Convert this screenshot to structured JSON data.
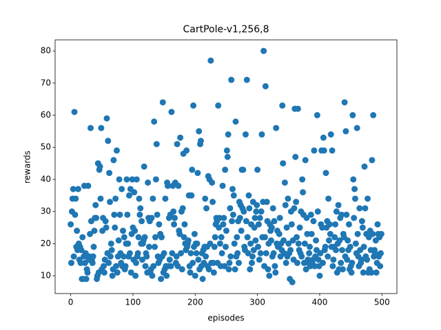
{
  "chart_data": {
    "type": "scatter",
    "title": "CartPole-v1,256,8",
    "x_label": "episodes",
    "y_label": "rewards",
    "xlim": [
      -25,
      524
    ],
    "ylim": [
      4.45,
      83.45
    ],
    "xticks": [
      0,
      100,
      200,
      300,
      400,
      500
    ],
    "yticks": [
      10,
      20,
      30,
      40,
      50,
      60,
      70,
      80
    ],
    "series": [
      {
        "color": "#1f77b4",
        "x": [
          0,
          1,
          2,
          3,
          4,
          5,
          6,
          7,
          8,
          9,
          10,
          11,
          12,
          13,
          14,
          15,
          16,
          17,
          18,
          19,
          20,
          21,
          22,
          23,
          24,
          25,
          26,
          27,
          28,
          29,
          30,
          31,
          32,
          33,
          34,
          35,
          36,
          37,
          38,
          39,
          40,
          41,
          42,
          43,
          44,
          45,
          46,
          47,
          48,
          49,
          50,
          51,
          52,
          53,
          54,
          55,
          56,
          57,
          58,
          59,
          60,
          61,
          62,
          63,
          64,
          65,
          66,
          67,
          68,
          69,
          70,
          71,
          72,
          73,
          74,
          75,
          76,
          77,
          78,
          79,
          80,
          81,
          82,
          83,
          84,
          85,
          86,
          87,
          88,
          89,
          90,
          91,
          92,
          93,
          94,
          95,
          96,
          97,
          98,
          99,
          100,
          101,
          102,
          103,
          104,
          105,
          106,
          107,
          108,
          109,
          110,
          111,
          112,
          113,
          114,
          115,
          116,
          117,
          118,
          119,
          120,
          121,
          122,
          123,
          124,
          125,
          126,
          127,
          128,
          129,
          130,
          131,
          132,
          133,
          134,
          135,
          136,
          137,
          138,
          139,
          140,
          141,
          142,
          143,
          144,
          145,
          146,
          147,
          148,
          149,
          150,
          151,
          152,
          153,
          154,
          155,
          156,
          157,
          158,
          159,
          160,
          161,
          162,
          163,
          164,
          165,
          166,
          167,
          168,
          169,
          170,
          171,
          172,
          173,
          174,
          175,
          176,
          177,
          178,
          179,
          180,
          181,
          182,
          183,
          184,
          185,
          186,
          187,
          188,
          189,
          190,
          191,
          192,
          193,
          194,
          195,
          196,
          197,
          198,
          199,
          200,
          201,
          202,
          203,
          204,
          205,
          206,
          207,
          208,
          209,
          210,
          211,
          212,
          213,
          214,
          215,
          216,
          217,
          218,
          219,
          220,
          221,
          222,
          223,
          224,
          225,
          226,
          227,
          228,
          229,
          230,
          231,
          232,
          233,
          234,
          235,
          236,
          237,
          238,
          239,
          240,
          241,
          242,
          243,
          244,
          245,
          246,
          247,
          248,
          249,
          250,
          251,
          252,
          253,
          254,
          255,
          256,
          257,
          258,
          259,
          260,
          261,
          262,
          263,
          264,
          265,
          266,
          267,
          268,
          269,
          270,
          271,
          272,
          273,
          274,
          275,
          276,
          277,
          278,
          279,
          280,
          281,
          282,
          283,
          284,
          285,
          286,
          287,
          288,
          289,
          290,
          291,
          292,
          293,
          294,
          295,
          296,
          297,
          298,
          299,
          300,
          301,
          302,
          303,
          304,
          305,
          306,
          307,
          308,
          309,
          310,
          311,
          312,
          313,
          314,
          315,
          316,
          317,
          318,
          319,
          320,
          321,
          322,
          323,
          324,
          325,
          326,
          327,
          328,
          329,
          330,
          331,
          332,
          333,
          334,
          335,
          336,
          337,
          338,
          339,
          340,
          341,
          342,
          343,
          344,
          345,
          346,
          347,
          348,
          349,
          350,
          351,
          352,
          353,
          354,
          355,
          356,
          357,
          358,
          359,
          360,
          361,
          362,
          363,
          364,
          365,
          366,
          367,
          368,
          369,
          370,
          371,
          372,
          373,
          374,
          375,
          376,
          377,
          378,
          379,
          380,
          381,
          382,
          383,
          384,
          385,
          386,
          387,
          388,
          389,
          390,
          391,
          392,
          393,
          394,
          395,
          396,
          397,
          398,
          399,
          400,
          401,
          402,
          403,
          404,
          405,
          406,
          407,
          408,
          409,
          410,
          411,
          412,
          413,
          414,
          415,
          416,
          417,
          418,
          419,
          420,
          421,
          422,
          423,
          424,
          425,
          426,
          427,
          428,
          429,
          430,
          431,
          432,
          433,
          434,
          435,
          436,
          437,
          438,
          439,
          440,
          441,
          442,
          443,
          444,
          445,
          446,
          447,
          448,
          449,
          450,
          451,
          452,
          453,
          454,
          455,
          456,
          457,
          458,
          459,
          460,
          461,
          462,
          463,
          464,
          465,
          466,
          467,
          468,
          469,
          470,
          471,
          472,
          473,
          474,
          475,
          476,
          477,
          478,
          479,
          480,
          481,
          482,
          483,
          484,
          485,
          486,
          487,
          488,
          489,
          490,
          491,
          492,
          493,
          494,
          495,
          496,
          497,
          498,
          499
        ],
        "values": [
          26,
          14,
          30,
          34,
          37,
          16,
          61,
          29,
          34,
          19,
          24,
          18,
          37,
          20,
          15,
          19,
          14,
          18,
          9,
          22,
          9,
          16,
          38,
          14,
          17,
          9,
          12,
          11,
          38,
          15,
          16,
          23,
          56,
          27,
          15,
          14,
          16,
          19,
          24,
          28,
          32,
          28,
          9,
          10,
          45,
          11,
          43,
          44,
          34,
          56,
          12,
          24,
          28,
          13,
          11,
          15,
          27,
          25,
          59,
          17,
          52,
          14,
          42,
          33,
          16,
          20,
          18,
          10,
          12,
          46,
          29,
          25,
          34,
          13,
          49,
          11,
          16,
          21,
          40,
          29,
          17,
          14,
          37,
          13,
          24,
          16,
          22,
          12,
          13,
          20,
          40,
          29,
          20,
          16,
          35,
          17,
          37,
          11,
          23,
          40,
          25,
          15,
          36,
          24,
          10,
          14,
          40,
          16,
          17,
          22,
          34,
          29,
          31,
          20,
          27,
          15,
          20,
          21,
          44,
          22,
          13,
          17,
          16,
          11,
          39,
          28,
          19,
          27,
          11,
          12,
          28,
          10,
          34,
          13,
          58,
          19,
          22,
          40,
          51,
          29,
          16,
          14,
          26,
          15,
          23,
          9,
          22,
          16,
          64,
          11,
          17,
          12,
          34,
          13,
          10,
          39,
          38,
          13,
          28,
          15,
          29,
          13,
          61,
          17,
          38,
          30,
          26,
          28,
          39,
          14,
          16,
          51,
          13,
          38,
          24,
          23,
          53,
          17,
          30,
          12,
          31,
          48,
          22,
          26,
          20,
          18,
          49,
          19,
          20,
          21,
          35,
          13,
          11,
          17,
          35,
          43,
          14,
          63,
          19,
          23,
          10,
          20,
          17,
          20,
          42,
          15,
          55,
          12,
          51,
          52,
          13,
          17,
          9,
          18,
          14,
          19,
          34,
          16,
          31,
          19,
          13,
          41,
          12,
          40,
          20,
          77,
          14,
          39,
          33,
          14,
          11,
          19,
          22,
          26,
          28,
          27,
          14,
          63,
          25,
          28,
          20,
          13,
          22,
          17,
          38,
          26,
          28,
          13,
          43,
          19,
          24,
          49,
          47,
          54,
          12,
          14,
          31,
          16,
          71,
          27,
          37,
          29,
          35,
          20,
          12,
          58,
          16,
          22,
          17,
          27,
          14,
          33,
          28,
          32,
          24,
          43,
          31,
          43,
          30,
          19,
          18,
          54,
          27,
          71,
          22,
          17,
          35,
          31,
          12,
          20,
          26,
          14,
          16,
          33,
          18,
          25,
          28,
          21,
          30,
          32,
          43,
          19,
          26,
          15,
          28,
          17,
          30,
          54,
          22,
          33,
          80,
          13,
          22,
          69,
          17,
          33,
          27,
          12,
          20,
          10,
          26,
          24,
          21,
          25,
          16,
          31,
          17,
          27,
          13,
          11,
          56,
          20,
          24,
          19,
          19,
          23,
          28,
          16,
          20,
          18,
          63,
          45,
          21,
          17,
          39,
          32,
          14,
          25,
          16,
          34,
          20,
          17,
          9,
          18,
          30,
          26,
          8,
          21,
          15,
          31,
          62,
          47,
          33,
          22,
          14,
          62,
          20,
          18,
          25,
          17,
          30,
          16,
          40,
          36,
          29,
          14,
          20,
          46,
          12,
          28,
          23,
          15,
          14,
          17,
          19,
          13,
          29,
          23,
          14,
          15,
          27,
          49,
          13,
          16,
          21,
          18,
          60,
          30,
          15,
          13,
          10,
          17,
          26,
          49,
          25,
          14,
          53,
          49,
          18,
          19,
          42,
          25,
          27,
          16,
          34,
          21,
          26,
          23,
          54,
          19,
          49,
          13,
          15,
          19,
          22,
          26,
          18,
          30,
          11,
          20,
          32,
          12,
          21,
          28,
          14,
          29,
          18,
          12,
          23,
          22,
          64,
          16,
          55,
          29,
          15,
          21,
          18,
          26,
          12,
          19,
          13,
          11,
          14,
          60,
          40,
          28,
          37,
          34,
          20,
          17,
          56,
          23,
          16,
          13,
          31,
          18,
          14,
          15,
          27,
          25,
          11,
          19,
          44,
          31,
          16,
          23,
          15,
          34,
          11,
          22,
          12,
          24,
          18,
          11,
          46,
          23,
          60,
          16,
          18,
          17,
          21,
          11,
          14,
          26,
          23,
          16,
          22,
          13,
          17,
          23
        ]
      }
    ]
  }
}
